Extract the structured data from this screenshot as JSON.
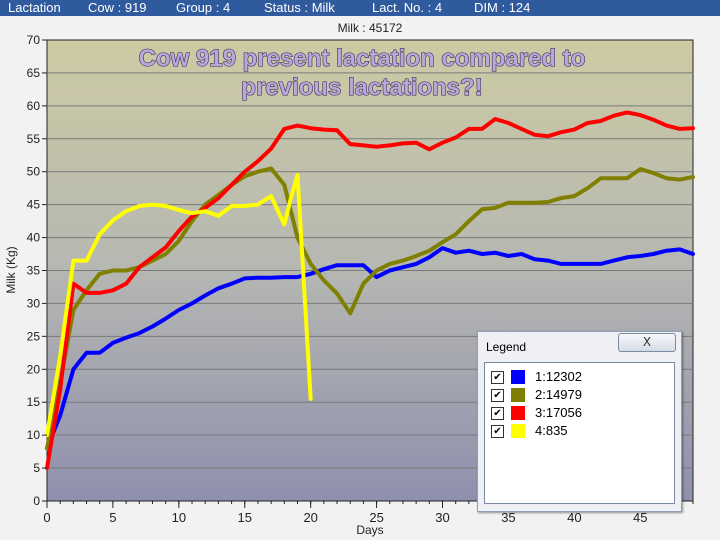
{
  "titlebar": {
    "items": [
      "Lactation",
      "Cow : 919",
      "Group : 4",
      "Status : Milk",
      "Lact. No. : 4",
      "DIM : 124"
    ]
  },
  "legend": {
    "title": "Legend",
    "close_label": "X",
    "check_mark": "✔",
    "entries": [
      {
        "label": "1:12302",
        "color": "#0000ff",
        "checked": true
      },
      {
        "label": "2:14979",
        "color": "#808000",
        "checked": true
      },
      {
        "label": "3:17056",
        "color": "#ff0000",
        "checked": true
      },
      {
        "label": "4:835",
        "color": "#ffff00",
        "checked": true
      }
    ]
  },
  "chart_data": {
    "type": "line",
    "header": "Milk : 45172",
    "title": "Cow 919 present lactation compared to previous lactations?!",
    "xlabel": "Days",
    "ylabel": "Milk (Kg)",
    "xlim": [
      0,
      49
    ],
    "ylim": [
      0,
      70
    ],
    "xticks": [
      0,
      5,
      10,
      15,
      20,
      25,
      30,
      35,
      40,
      45
    ],
    "yticks": [
      0,
      5,
      10,
      15,
      20,
      25,
      30,
      35,
      40,
      45,
      50,
      55,
      60,
      65,
      70
    ],
    "grid": true,
    "legend_position": "bottom-right",
    "series": [
      {
        "name": "1:12302",
        "color": "#0000ff",
        "x": [
          0,
          1,
          2,
          3,
          4,
          5,
          6,
          7,
          8,
          9,
          10,
          11,
          12,
          13,
          14,
          15,
          16,
          17,
          18,
          19,
          20,
          21,
          22,
          23,
          24,
          25,
          26,
          27,
          28,
          29,
          30,
          31,
          32,
          33,
          34,
          35,
          36,
          37,
          38,
          39,
          40,
          41,
          42,
          43,
          44,
          45,
          46,
          47,
          48,
          49
        ],
        "y": [
          8,
          13,
          20,
          22.5,
          22.5,
          24,
          24.8,
          25.5,
          26.5,
          27.7,
          29,
          30,
          31.2,
          32.3,
          33,
          33.8,
          33.9,
          33.9,
          34,
          34,
          34.5,
          35.2,
          35.8,
          35.8,
          35.8,
          34,
          35,
          35.5,
          36,
          37,
          38.4,
          37.7,
          38,
          37.5,
          37.7,
          37.2,
          37.5,
          36.7,
          36.5,
          36,
          36,
          36,
          36,
          36.5,
          37,
          37.2,
          37.5,
          38,
          38.2,
          37.5
        ]
      },
      {
        "name": "2:14979",
        "color": "#808000",
        "x": [
          0,
          1,
          2,
          3,
          4,
          5,
          6,
          7,
          8,
          9,
          10,
          11,
          12,
          13,
          14,
          15,
          16,
          17,
          18,
          19,
          20,
          21,
          22,
          23,
          24,
          25,
          26,
          27,
          28,
          29,
          30,
          31,
          32,
          33,
          34,
          35,
          36,
          37,
          38,
          39,
          40,
          41,
          42,
          43,
          44,
          45,
          46,
          47,
          48,
          49
        ],
        "y": [
          8,
          18,
          29,
          32,
          34.5,
          35,
          35,
          35.5,
          36.5,
          37.5,
          39.5,
          42.5,
          45,
          46.5,
          48,
          49.3,
          50,
          50.5,
          48,
          40,
          36,
          33.5,
          31.5,
          28.5,
          33,
          35,
          36,
          36.5,
          37.2,
          38,
          39.3,
          40.5,
          42.5,
          44.3,
          44.5,
          45.3,
          45.3,
          45.3,
          45.4,
          46,
          46.3,
          47.5,
          49,
          49,
          49,
          50.4,
          49.8,
          49,
          48.8,
          49.2
        ]
      },
      {
        "name": "3:17056",
        "color": "#ff0000",
        "x": [
          0,
          1,
          2,
          3,
          4,
          5,
          6,
          7,
          8,
          9,
          10,
          11,
          12,
          13,
          14,
          15,
          16,
          17,
          18,
          19,
          20,
          21,
          22,
          23,
          24,
          25,
          26,
          27,
          28,
          29,
          30,
          31,
          32,
          33,
          34,
          35,
          36,
          37,
          38,
          39,
          40,
          41,
          42,
          43,
          44,
          45,
          46,
          47,
          48,
          49
        ],
        "y": [
          5,
          17,
          33,
          31.6,
          31.6,
          32,
          33,
          35.5,
          37,
          38.5,
          41,
          43.2,
          44.5,
          46,
          48,
          50,
          51.6,
          53.5,
          56.5,
          57,
          56.6,
          56.4,
          56.3,
          54.2,
          54,
          53.8,
          54,
          54.3,
          54.4,
          53.4,
          54.4,
          55.2,
          56.5,
          56.5,
          58,
          57.4,
          56.5,
          55.6,
          55.4,
          56,
          56.4,
          57.4,
          57.7,
          58.5,
          59,
          58.6,
          57.9,
          57,
          56.5,
          56.6
        ]
      },
      {
        "name": "4:835",
        "color": "#ffff00",
        "x": [
          0,
          1,
          2,
          3,
          4,
          5,
          6,
          7,
          8,
          9,
          10,
          11,
          12,
          13,
          14,
          15,
          16,
          17,
          18,
          18.5,
          19,
          20
        ],
        "y": [
          10,
          22,
          36.5,
          36.5,
          40.5,
          42.6,
          44,
          44.8,
          45,
          44.8,
          44.2,
          43.7,
          44,
          43.3,
          44.8,
          44.8,
          45,
          46.3,
          42,
          46,
          49.5,
          15.5
        ]
      }
    ]
  }
}
